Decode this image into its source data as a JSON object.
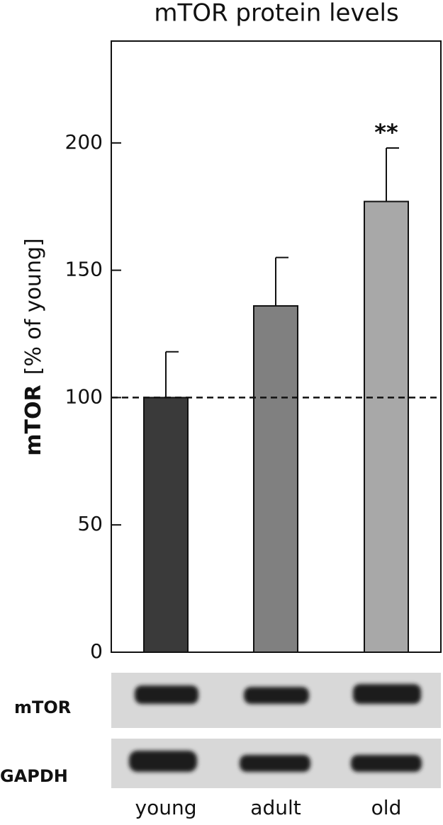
{
  "chart_data": {
    "type": "bar",
    "title": "mTOR protein levels",
    "ylabel_bold": "mTOR",
    "ylabel": "[% of  young]",
    "categories": [
      "young",
      "adult",
      "old"
    ],
    "values": [
      100,
      136,
      177
    ],
    "errors": [
      18,
      19,
      21
    ],
    "colors": [
      "#3a3a3a",
      "#808080",
      "#a8a8a8"
    ],
    "ylim": [
      0,
      240
    ],
    "yticks": [
      0,
      50,
      100,
      150,
      200
    ],
    "reference_line": 100,
    "annotations": [
      {
        "text": "**",
        "category_index": 2
      }
    ],
    "blot_labels": [
      "mTOR",
      "GAPDH"
    ]
  }
}
